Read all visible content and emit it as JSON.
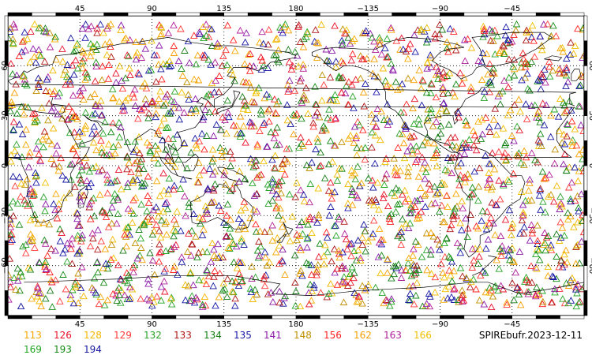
{
  "map": {
    "lon_labels": [
      "45",
      "90",
      "135",
      "180",
      "−135",
      "−90",
      "−45"
    ],
    "lat_labels": [
      "60",
      "30",
      "0",
      "−30",
      "−60"
    ],
    "lon_label_values": [
      45,
      90,
      135,
      180,
      225,
      270,
      315
    ],
    "lat_label_values": [
      60,
      30,
      0,
      -30,
      -60
    ],
    "lon_range": [
      0,
      360
    ],
    "lat_range": [
      -90,
      90
    ],
    "marker": "triangle-outline",
    "source": "SPIREbufr.2023-12-11"
  },
  "legend": {
    "items": [
      {
        "label": "113",
        "color": "#f5a800"
      },
      {
        "label": "126",
        "color": "#e8132b"
      },
      {
        "label": "128",
        "color": "#f0b800"
      },
      {
        "label": "129",
        "color": "#ff3b3b"
      },
      {
        "label": "132",
        "color": "#2aa32a"
      },
      {
        "label": "133",
        "color": "#b01818"
      },
      {
        "label": "134",
        "color": "#177d17"
      },
      {
        "label": "135",
        "color": "#1a1aa8"
      },
      {
        "label": "141",
        "color": "#8b1aa8"
      },
      {
        "label": "148",
        "color": "#c09000"
      },
      {
        "label": "156",
        "color": "#ff2020"
      },
      {
        "label": "162",
        "color": "#f5a000"
      },
      {
        "label": "163",
        "color": "#b0209a"
      },
      {
        "label": "166",
        "color": "#f0c000"
      },
      {
        "label": "169",
        "color": "#21a521"
      },
      {
        "label": "193",
        "color": "#138a13"
      },
      {
        "label": "194",
        "color": "#1616a0"
      }
    ]
  }
}
